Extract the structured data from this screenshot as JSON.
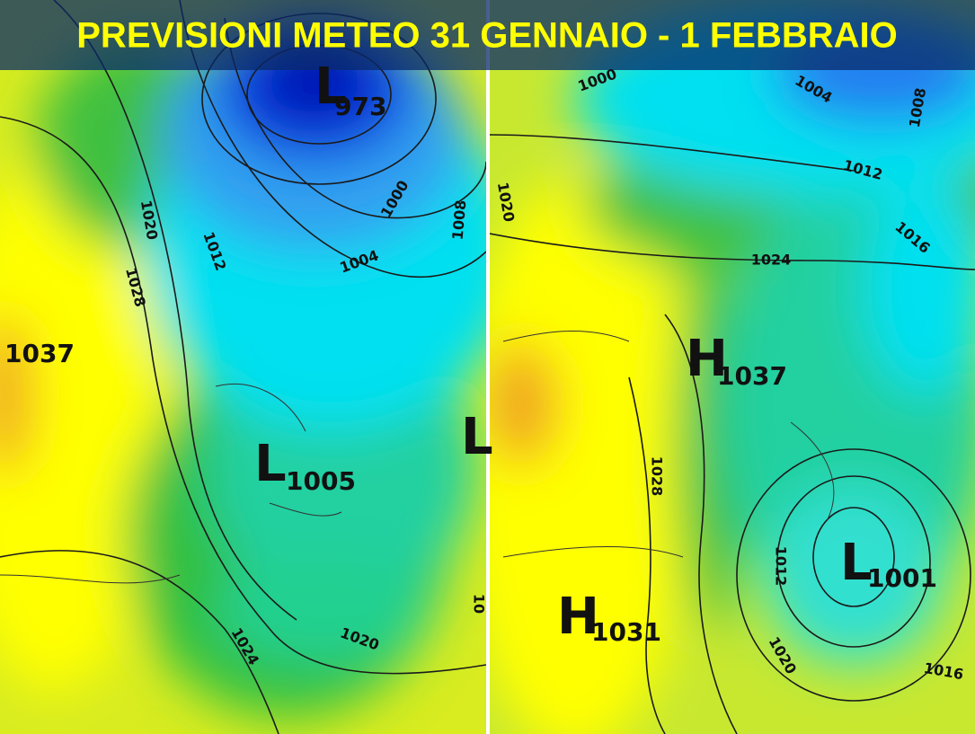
{
  "title": "PREVISIONI METEO 31 GENNAIO - 1 FEBBRAIO",
  "maps": [
    {
      "centers": [
        {
          "letter": "L",
          "value": "973"
        },
        {
          "value": "1037"
        },
        {
          "letter": "L",
          "value": "1005"
        },
        {
          "letter": "L"
        }
      ],
      "isobar_labels": [
        "1020",
        "1012",
        "1028",
        "1000",
        "1004",
        "1008",
        "1024",
        "1020",
        "10"
      ]
    },
    {
      "centers": [
        {
          "letter": "H",
          "value": "1037"
        },
        {
          "letter": "H",
          "value": "1031"
        },
        {
          "letter": "L",
          "value": "1001"
        }
      ],
      "isobar_labels": [
        "1000",
        "1004",
        "1008",
        "1012",
        "1016",
        "1024",
        "1020",
        "1028",
        "1012",
        "1020",
        "1016"
      ]
    }
  ]
}
